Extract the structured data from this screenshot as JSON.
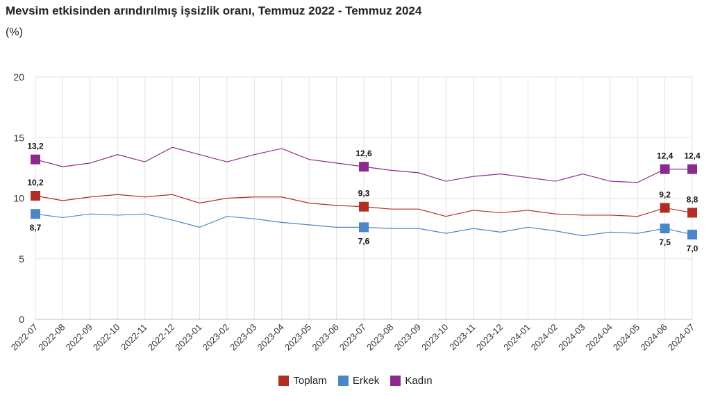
{
  "header": {
    "title": "Mevsim etkisinden arındırılmış işsizlik oranı, Temmuz 2022 - Temmuz 2024",
    "unit": "(%)"
  },
  "chart_data": {
    "type": "line",
    "title": "Mevsim etkisinden arındırılmış işsizlik oranı, Temmuz 2022 - Temmuz 2024",
    "ylabel": "(%)",
    "xlabel": "",
    "ylim": [
      0,
      20
    ],
    "yticks": [
      "0",
      "5",
      "10",
      "15",
      "20"
    ],
    "grid": true,
    "legend_position": "bottom-center",
    "categories": [
      "2022-07",
      "2022-08",
      "2022-09",
      "2022-10",
      "2022-11",
      "2022-12",
      "2023-01",
      "2023-02",
      "2023-03",
      "2023-04",
      "2023-05",
      "2023-06",
      "2023-07",
      "2023-08",
      "2023-09",
      "2023-10",
      "2023-11",
      "2023-12",
      "2024-01",
      "2024-02",
      "2024-03",
      "2024-04",
      "2024-05",
      "2024-06",
      "2024-07"
    ],
    "series": [
      {
        "name": "Toplam",
        "color": "#b22d24",
        "values": [
          10.2,
          9.8,
          10.1,
          10.3,
          10.1,
          10.3,
          9.6,
          10.0,
          10.1,
          10.1,
          9.6,
          9.4,
          9.3,
          9.1,
          9.1,
          8.5,
          9.0,
          8.8,
          9.0,
          8.7,
          8.6,
          8.6,
          8.5,
          9.2,
          8.8
        ],
        "markers": [
          {
            "index": 0,
            "label": "10,2",
            "pos": "above"
          },
          {
            "index": 12,
            "label": "9,3",
            "pos": "above"
          },
          {
            "index": 23,
            "label": "9,2",
            "pos": "above"
          },
          {
            "index": 24,
            "label": "8,8",
            "pos": "above"
          }
        ]
      },
      {
        "name": "Erkek",
        "color": "#4a86c8",
        "values": [
          8.7,
          8.4,
          8.7,
          8.6,
          8.7,
          8.2,
          7.6,
          8.5,
          8.3,
          8.0,
          7.8,
          7.6,
          7.6,
          7.5,
          7.5,
          7.1,
          7.5,
          7.2,
          7.6,
          7.3,
          6.9,
          7.2,
          7.1,
          7.5,
          7.0
        ],
        "markers": [
          {
            "index": 0,
            "label": "8,7",
            "pos": "below"
          },
          {
            "index": 12,
            "label": "7,6",
            "pos": "below"
          },
          {
            "index": 23,
            "label": "7,5",
            "pos": "below"
          },
          {
            "index": 24,
            "label": "7,0",
            "pos": "below"
          }
        ]
      },
      {
        "name": "Kadın",
        "color": "#8c2a8c",
        "values": [
          13.2,
          12.6,
          12.9,
          13.6,
          13.0,
          14.2,
          13.6,
          13.0,
          13.6,
          14.1,
          13.2,
          12.9,
          12.6,
          12.3,
          12.1,
          11.4,
          11.8,
          12.0,
          11.7,
          11.4,
          12.0,
          11.4,
          11.3,
          12.4,
          12.4
        ],
        "markers": [
          {
            "index": 0,
            "label": "13,2",
            "pos": "above"
          },
          {
            "index": 12,
            "label": "12,6",
            "pos": "above"
          },
          {
            "index": 23,
            "label": "12,4",
            "pos": "above"
          },
          {
            "index": 24,
            "label": "12,4",
            "pos": "above"
          }
        ]
      }
    ]
  }
}
